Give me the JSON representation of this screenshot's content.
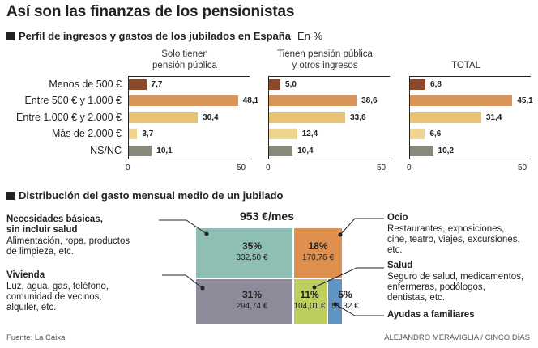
{
  "title": "Así son las finanzas de los pensionistas",
  "subtitle": "Perfil de ingresos y gastos de los jubilados en España",
  "subtitle_units": "En %",
  "section2_title": "Distribución del gasto mensual medio de un jubilado",
  "footer_source": "Fuente: La Caixa",
  "footer_credit": "ALEJANDRO MERAVIGLIA / CINCO DÍAS",
  "chart_data": [
    {
      "type": "bar",
      "orientation": "horizontal",
      "categories": [
        "Menos de 500 €",
        "Entre 500 € y 1.000 €",
        "Entre 1.000 € y 2.000 €",
        "Más de 2.000 €",
        "NS/NC"
      ],
      "value_labels": [
        [
          "7,7",
          "48,1",
          "30,4",
          "3,7",
          "10,1"
        ],
        [
          "5,0",
          "38,6",
          "33,6",
          "12,4",
          "10,4"
        ],
        [
          "6,8",
          "45,1",
          "31,4",
          "6,6",
          "10,2"
        ]
      ],
      "xlim": [
        0,
        50
      ],
      "xticks": [
        "0",
        "50"
      ],
      "bar_colors": [
        "#8b4a2b",
        "#d9945a",
        "#e8c372",
        "#eed58f",
        "#8a8a7c"
      ],
      "series": [
        {
          "name": "Solo tienen\npensión pública",
          "values": [
            7.7,
            48.1,
            30.4,
            3.7,
            10.1
          ]
        },
        {
          "name": "Tienen pensión pública\ny otros ingresos",
          "values": [
            5.0,
            38.6,
            33.6,
            12.4,
            10.4
          ]
        },
        {
          "name": "TOTAL",
          "values": [
            6.8,
            45.1,
            31.4,
            6.6,
            10.2
          ]
        }
      ]
    },
    {
      "type": "treemap",
      "title": "953 €/mes",
      "cells": [
        {
          "name": "Necesidades básicas,\nsin incluir salud",
          "desc": "Alimentación, ropa, productos\nde limpieza, etc.",
          "pct": "35%",
          "amount": "332,50 €",
          "value": 35,
          "color": "#8fbfb4"
        },
        {
          "name": "Vivienda",
          "desc": "Luz, agua, gas, teléfono,\ncomunidad de vecinos,\nalquiler, etc.",
          "pct": "31%",
          "amount": "294,74 €",
          "value": 31,
          "color": "#8e8a99"
        },
        {
          "name": "Ocio",
          "desc": "Restaurantes, exposiciones,\ncine, teatro, viajes, excursiones,\netc.",
          "pct": "18%",
          "amount": "170,76 €",
          "value": 18,
          "color": "#e0904e"
        },
        {
          "name": "Salud",
          "desc": "Seguro de salud, medicamentos,\nenfermeras, podólogos,\ndentistas, etc.",
          "pct": "11%",
          "amount": "104,01 €",
          "value": 11,
          "color": "#bccf5c"
        },
        {
          "name": "Ayudas a familiares",
          "desc": "",
          "pct": "5%",
          "amount": "51,32 €",
          "value": 5,
          "color": "#5f93c4"
        }
      ]
    }
  ]
}
